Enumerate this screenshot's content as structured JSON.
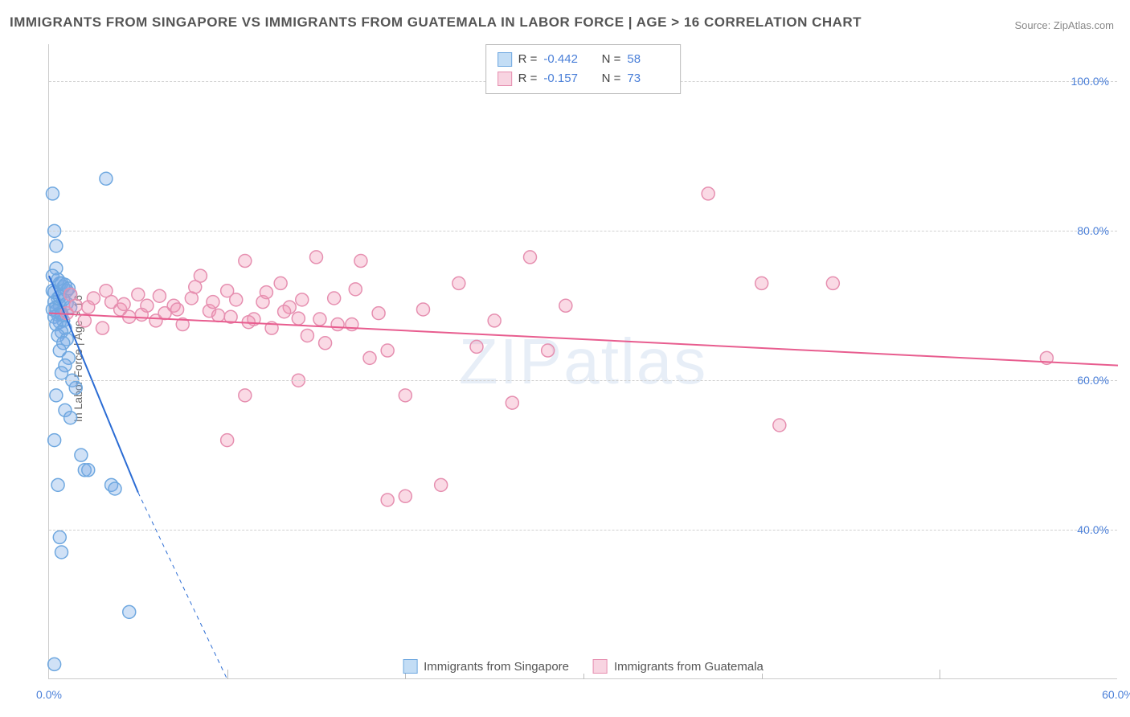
{
  "title": "IMMIGRANTS FROM SINGAPORE VS IMMIGRANTS FROM GUATEMALA IN LABOR FORCE | AGE > 16 CORRELATION CHART",
  "source": "Source: ZipAtlas.com",
  "ylabel": "In Labor Force | Age > 16",
  "watermark": "ZIPatlas",
  "chart": {
    "type": "scatter",
    "background_color": "#ffffff",
    "grid_color": "#d0d0d0",
    "axis_color": "#cccccc",
    "tick_label_color": "#4a7fd8",
    "xlim": [
      0,
      60
    ],
    "ylim": [
      20,
      105
    ],
    "xtick_labels": [
      "0.0%",
      "60.0%"
    ],
    "xtick_positions": [
      0,
      60
    ],
    "ytick_labels": [
      "40.0%",
      "60.0%",
      "80.0%",
      "100.0%"
    ],
    "ytick_positions": [
      40,
      60,
      80,
      100
    ],
    "x_minor_grid": [
      10,
      20,
      30,
      40,
      50
    ],
    "marker_radius": 8,
    "marker_stroke_width": 1.5,
    "line_width": 2,
    "series": [
      {
        "name": "Immigrants from Singapore",
        "color_fill": "rgba(120,170,230,0.35)",
        "color_stroke": "#6fa8e0",
        "line_color": "#2b6cd4",
        "swatch_fill": "#c3ddf5",
        "swatch_border": "#6fa8e0",
        "R": "-0.442",
        "N": "58",
        "regression": {
          "x1": 0,
          "y1": 74,
          "x2_solid": 5,
          "y2_solid": 45,
          "x2_dash": 10,
          "y2_dash": 20
        },
        "points": [
          [
            0.2,
            85
          ],
          [
            0.3,
            80
          ],
          [
            0.4,
            78
          ],
          [
            0.2,
            72
          ],
          [
            0.5,
            71
          ],
          [
            0.3,
            70.5
          ],
          [
            0.6,
            70
          ],
          [
            0.4,
            69.8
          ],
          [
            0.2,
            69.5
          ],
          [
            0.7,
            69
          ],
          [
            0.5,
            68.8
          ],
          [
            0.3,
            68.5
          ],
          [
            0.8,
            68
          ],
          [
            0.6,
            67.8
          ],
          [
            0.4,
            67.5
          ],
          [
            0.9,
            67
          ],
          [
            0.7,
            66.5
          ],
          [
            0.5,
            66
          ],
          [
            1.0,
            65.5
          ],
          [
            0.8,
            65
          ],
          [
            0.6,
            64
          ],
          [
            1.1,
            63
          ],
          [
            0.9,
            62
          ],
          [
            0.7,
            61
          ],
          [
            1.3,
            60
          ],
          [
            1.5,
            59
          ],
          [
            0.4,
            58
          ],
          [
            0.9,
            56
          ],
          [
            1.2,
            55
          ],
          [
            0.3,
            52
          ],
          [
            1.8,
            50
          ],
          [
            2.0,
            48
          ],
          [
            2.2,
            48
          ],
          [
            0.5,
            46
          ],
          [
            3.5,
            46
          ],
          [
            3.7,
            45.5
          ],
          [
            0.6,
            39
          ],
          [
            0.7,
            37
          ],
          [
            4.5,
            29
          ],
          [
            0.3,
            22
          ],
          [
            3.2,
            87
          ],
          [
            0.4,
            75
          ],
          [
            0.6,
            73
          ],
          [
            0.8,
            72.5
          ],
          [
            1.0,
            72
          ],
          [
            1.2,
            71.5
          ],
          [
            0.2,
            74
          ],
          [
            0.5,
            73.5
          ],
          [
            0.7,
            73
          ],
          [
            0.9,
            72.8
          ],
          [
            1.1,
            72.3
          ],
          [
            0.3,
            71.8
          ],
          [
            0.6,
            71.2
          ],
          [
            0.8,
            70.8
          ],
          [
            1.0,
            70.3
          ],
          [
            1.2,
            69.8
          ],
          [
            0.4,
            69.3
          ],
          [
            0.7,
            68.8
          ]
        ]
      },
      {
        "name": "Immigrants from Guatemala",
        "color_fill": "rgba(240,150,180,0.35)",
        "color_stroke": "#e68fb0",
        "line_color": "#e85d8f",
        "swatch_fill": "#f8d4e1",
        "swatch_border": "#e68fb0",
        "R": "-0.157",
        "N": "73",
        "regression": {
          "x1": 0,
          "y1": 69,
          "x2_solid": 60,
          "y2_solid": 62,
          "x2_dash": 60,
          "y2_dash": 62
        },
        "points": [
          [
            1,
            69
          ],
          [
            1.5,
            70
          ],
          [
            2,
            68
          ],
          [
            2.5,
            71
          ],
          [
            3,
            67
          ],
          [
            3.5,
            70.5
          ],
          [
            4,
            69.5
          ],
          [
            4.5,
            68.5
          ],
          [
            5,
            71.5
          ],
          [
            5.5,
            70
          ],
          [
            6,
            68
          ],
          [
            6.5,
            69
          ],
          [
            7,
            70
          ],
          [
            7.5,
            67.5
          ],
          [
            8,
            71
          ],
          [
            8.5,
            74
          ],
          [
            9,
            69.3
          ],
          [
            9.5,
            68.7
          ],
          [
            10,
            72
          ],
          [
            10.5,
            70.8
          ],
          [
            11,
            76
          ],
          [
            11.5,
            68.2
          ],
          [
            12,
            70.5
          ],
          [
            12.5,
            67
          ],
          [
            13,
            73
          ],
          [
            13.5,
            69.8
          ],
          [
            14,
            68.3
          ],
          [
            14.5,
            66
          ],
          [
            15,
            76.5
          ],
          [
            15.5,
            65
          ],
          [
            16,
            71
          ],
          [
            17,
            67.5
          ],
          [
            17.5,
            76
          ],
          [
            18,
            63
          ],
          [
            18.5,
            69
          ],
          [
            19,
            64
          ],
          [
            20,
            58
          ],
          [
            21,
            69.5
          ],
          [
            22,
            46
          ],
          [
            23,
            73
          ],
          [
            24,
            64.5
          ],
          [
            25,
            68
          ],
          [
            26,
            57
          ],
          [
            27,
            76.5
          ],
          [
            28,
            64
          ],
          [
            29,
            70
          ],
          [
            37,
            85
          ],
          [
            40,
            73
          ],
          [
            41,
            54
          ],
          [
            44,
            73
          ],
          [
            56,
            63
          ],
          [
            1.2,
            71.5
          ],
          [
            2.2,
            69.8
          ],
          [
            3.2,
            72
          ],
          [
            4.2,
            70.2
          ],
          [
            5.2,
            68.8
          ],
          [
            6.2,
            71.3
          ],
          [
            7.2,
            69.5
          ],
          [
            8.2,
            72.5
          ],
          [
            9.2,
            70.5
          ],
          [
            10.2,
            68.5
          ],
          [
            11.2,
            67.8
          ],
          [
            12.2,
            71.8
          ],
          [
            13.2,
            69.2
          ],
          [
            14.2,
            70.8
          ],
          [
            15.2,
            68.2
          ],
          [
            16.2,
            67.5
          ],
          [
            17.2,
            72.2
          ],
          [
            10,
            52
          ],
          [
            14,
            60
          ],
          [
            19,
            44
          ],
          [
            20,
            44.5
          ],
          [
            11,
            58
          ]
        ]
      }
    ]
  },
  "stats_labels": {
    "R": "R =",
    "N": "N ="
  },
  "bottom_legend": {
    "items": [
      "Immigrants from Singapore",
      "Immigrants from Guatemala"
    ]
  }
}
